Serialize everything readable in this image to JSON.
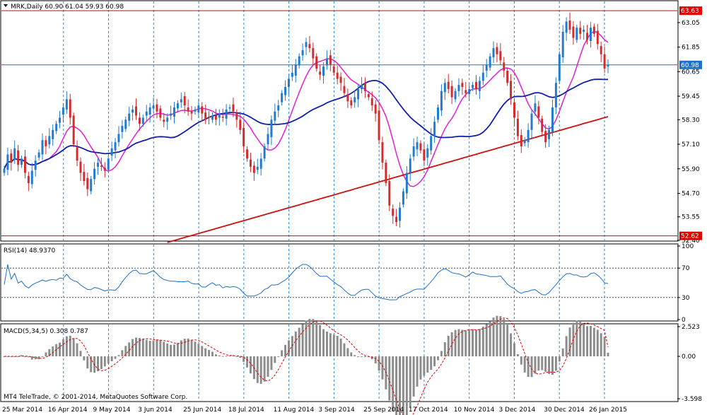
{
  "colors": {
    "up": "#1E7BD0",
    "down": "#D5292D",
    "ma_fast": "#E020D0",
    "ma_mid": "#1020A8",
    "ma_slow": "#D01010",
    "level": "#E00000",
    "grid": "#2C86D6",
    "rsi_line": "#1E70C8",
    "macd_hist": "#8C8C8C",
    "macd_signal": "#E00000",
    "price_tag_bg": "#E00000",
    "price_tag_blue": "#1E70C8",
    "current_line": "#1E70C8"
  },
  "header": {
    "title": "MRK,Daily  60.90 61.04 59.93 60.98",
    "dropdown_icon": "triangle-down-icon"
  },
  "rsi_label": "RSI(14) 48.9370",
  "macd_label": "MACD(5,34,5) 0.308 0.787",
  "copyright": "MT4 TeleTrade, © 2001-2014, MetaQuotes Software Corp.",
  "chart_data": {
    "type": "candlestick",
    "symbol": "MRK",
    "timeframe": "Daily",
    "ohlc_last": {
      "open": 60.9,
      "high": 61.04,
      "low": 59.93,
      "close": 60.98
    },
    "price_axis_ticks": [
      "63.05",
      "61.85",
      "60.65",
      "59.45",
      "58.30",
      "57.10",
      "55.90",
      "54.70",
      "53.55",
      "52.40"
    ],
    "price_ylim": [
      52.4,
      64.05
    ],
    "levels": [
      {
        "value": 63.63,
        "label": "63.63"
      },
      {
        "value": 52.62,
        "label": "52.62"
      }
    ],
    "current_price": {
      "value": 60.98,
      "label": "60.98"
    },
    "date_labels": [
      "25 Mar 2014",
      "16 Apr 2014",
      "9 May 2014",
      "3 Jun 2014",
      "25 Jun 2014",
      "18 Jul 2014",
      "11 Aug 2014",
      "3 Sep 2014",
      "25 Sep 2014",
      "17 Oct 2014",
      "10 Nov 2014",
      "3 Dec 2014",
      "30 Dec 2014",
      "26 Jan 2015"
    ],
    "closes": [
      55.9,
      56.6,
      56.2,
      56.9,
      56.1,
      56.4,
      55.7,
      55.2,
      55.8,
      56.3,
      56.7,
      57.3,
      57.0,
      57.5,
      57.8,
      58.1,
      58.4,
      58.9,
      59.3,
      58.4,
      57.1,
      56.3,
      55.7,
      55.3,
      54.9,
      55.4,
      55.9,
      56.2,
      56.0,
      55.8,
      56.4,
      56.9,
      57.2,
      57.6,
      58.0,
      58.3,
      58.6,
      58.8,
      58.5,
      58.1,
      58.4,
      58.7,
      58.9,
      59.0,
      58.7,
      58.4,
      58.2,
      58.4,
      58.6,
      58.9,
      59.1,
      59.3,
      59.0,
      58.7,
      58.6,
      58.8,
      59.0,
      58.6,
      58.3,
      58.4,
      58.5,
      58.3,
      58.6,
      58.4,
      58.8,
      58.9,
      58.7,
      58.3,
      57.8,
      57.0,
      56.4,
      56.0,
      55.7,
      56.0,
      56.4,
      57.0,
      57.6,
      58.3,
      58.7,
      59.0,
      59.6,
      59.9,
      60.3,
      60.6,
      61.0,
      61.4,
      61.7,
      62.1,
      61.8,
      61.3,
      60.8,
      60.5,
      60.9,
      61.3,
      61.0,
      60.6,
      60.3,
      60.1,
      59.6,
      59.2,
      59.0,
      59.4,
      59.8,
      60.0,
      59.7,
      59.4,
      59.0,
      58.6,
      57.3,
      56.2,
      55.2,
      54.1,
      53.6,
      53.3,
      54.0,
      54.8,
      55.7,
      56.4,
      57.0,
      57.2,
      56.8,
      56.3,
      56.9,
      57.5,
      58.2,
      58.9,
      59.7,
      60.1,
      59.8,
      59.4,
      59.7,
      60.0,
      59.9,
      59.6,
      59.8,
      60.0,
      59.8,
      60.2,
      60.6,
      61.0,
      61.4,
      61.8,
      61.5,
      61.2,
      60.7,
      60.1,
      59.3,
      58.4,
      57.5,
      57.0,
      57.3,
      57.8,
      58.6,
      59.1,
      58.4,
      57.7,
      57.2,
      57.8,
      58.9,
      60.1,
      61.5,
      62.6,
      63.1,
      62.7,
      62.3,
      62.8,
      62.5,
      62.7,
      62.2,
      62.8,
      62.5,
      62.0,
      61.5,
      60.8,
      60.98
    ],
    "series": [
      {
        "name": "RSI(14)",
        "last": 48.937,
        "ylim": [
          0,
          100
        ],
        "ticks": [
          "100",
          "70",
          "30",
          "0"
        ],
        "levels": [
          70,
          30
        ]
      },
      {
        "name": "MACD(5,34,5)",
        "last_main": 0.308,
        "last_signal": 0.787,
        "ticks": [
          "2.523",
          "0.00",
          "-3.598"
        ],
        "ylim": [
          -3.598,
          2.523
        ]
      }
    ],
    "xlabel": "",
    "ylabel": ""
  }
}
